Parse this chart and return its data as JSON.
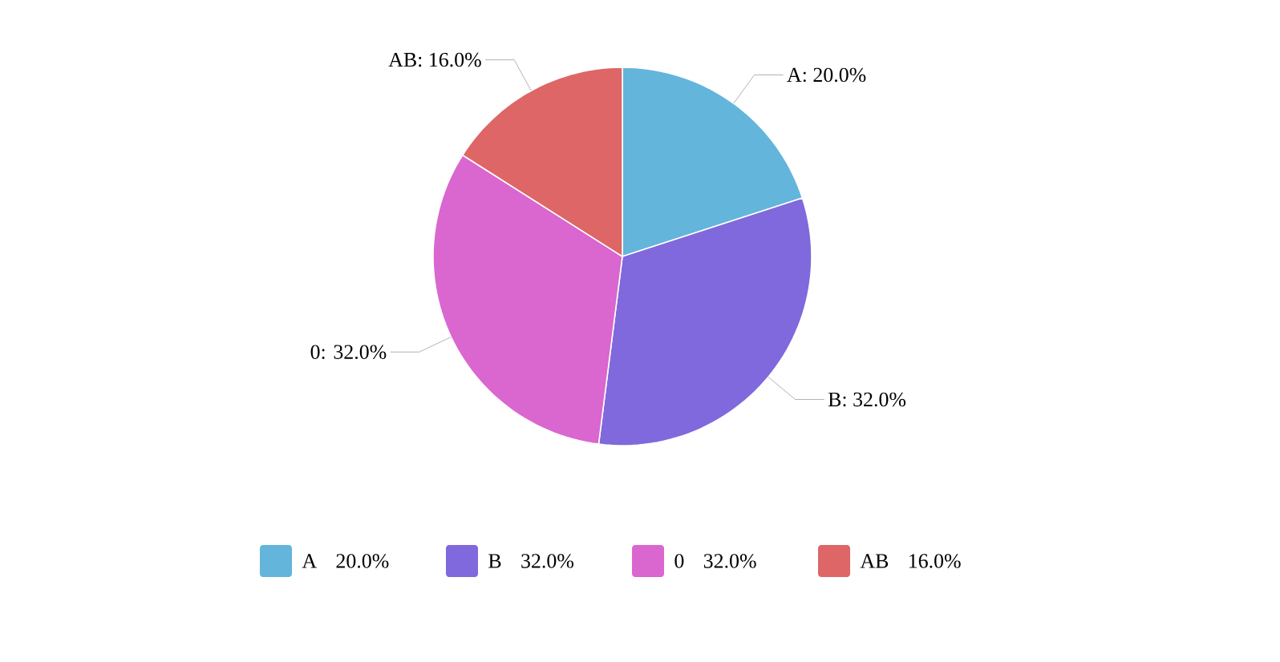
{
  "chart_data": {
    "type": "pie",
    "categories": [
      "A",
      "B",
      "0",
      "AB"
    ],
    "values": [
      20.0,
      32.0,
      32.0,
      16.0
    ],
    "value_labels": [
      "20.0%",
      "32.0%",
      "32.0%",
      "16.0%"
    ],
    "colors": [
      "#63b5dc",
      "#8069dc",
      "#da66d0",
      "#de6666"
    ],
    "annotations": [
      "A: 20.0%",
      "B: 32.0%",
      "0: 32.0%",
      "AB: 16.0%"
    ],
    "legend": "bottom"
  }
}
